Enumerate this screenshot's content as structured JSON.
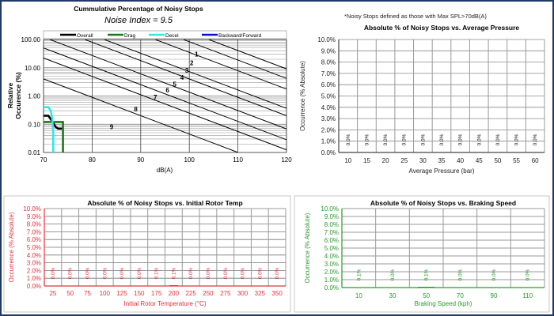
{
  "note": "*Noisy Stops defined as those with Max SPL>70dB(A)",
  "chart_data": [
    {
      "type": "line",
      "title": "Cummulative Percentage of Noisy Stops",
      "subtitle": "Noise Index = 9.5",
      "xlabel": "dB(A)",
      "ylabel": "Relative Occurence (%)",
      "xlim": [
        70,
        120
      ],
      "ylim": [
        0.01,
        100
      ],
      "yscale": "log",
      "xticks": [
        "70",
        "80",
        "90",
        "100",
        "110",
        "120"
      ],
      "yticks": [
        "0.01",
        "0.10",
        "1.00",
        "10.00",
        "100.00"
      ],
      "legend": [
        "Overall",
        "Drag",
        "Decel",
        "Backward/Forward"
      ],
      "legend_position": "top",
      "colors": {
        "Overall": "#000000",
        "Drag": "#1a7a1a",
        "Decel": "#33e6e6",
        "Backward/Forward": "#1010d0"
      },
      "series": [
        {
          "name": "Overall",
          "x": [
            70,
            71,
            71.5,
            72.5,
            73,
            73.8
          ],
          "y": [
            0.2,
            0.2,
            0.15,
            0.08,
            0.07,
            0.07
          ]
        },
        {
          "name": "Drag",
          "x": [
            70,
            74,
            74,
            74
          ],
          "y": [
            0.12,
            0.12,
            0.1,
            0.01
          ]
        },
        {
          "name": "Decel",
          "x": [
            70,
            71,
            71.5,
            71.8,
            72,
            72
          ],
          "y": [
            0.4,
            0.4,
            0.3,
            0.15,
            0.05,
            0.01
          ]
        },
        {
          "name": "Backward/Forward",
          "x": [],
          "y": []
        }
      ],
      "noise_index_lines": {
        "labels": [
          "1",
          "2",
          "3",
          "4",
          "5",
          "6",
          "7",
          "8",
          "9"
        ],
        "db_at_100pct": [
          104,
          98.8,
          93,
          82.5,
          78.5,
          71.3,
          65.4,
          59.9,
          48.5
        ],
        "decades_per_db": 0.065,
        "label_db": [
          101.5,
          100.5,
          99.5,
          98.5,
          97,
          95.5,
          93,
          89,
          84
        ],
        "label_pct": [
          30,
          15,
          8,
          4.5,
          2.6,
          1.6,
          0.9,
          0.35,
          0.08
        ]
      }
    },
    {
      "type": "bar",
      "title": "Absolute % of Noisy Stops vs. Average Pressure",
      "xlabel": "Average Pressure (bar)",
      "ylabel": "Occurrence (% Absolute)",
      "color": "#000000",
      "categories": [
        "10",
        "15",
        "20",
        "25",
        "30",
        "35",
        "40",
        "45",
        "50",
        "55",
        "60"
      ],
      "values": [
        0,
        0,
        0,
        0,
        0,
        0,
        0,
        0,
        0,
        0,
        0
      ],
      "labels": [
        "0.0%",
        "0.0%",
        "0.0%",
        "0.0%",
        "0.0%",
        "0.0%",
        "0.0%",
        "0.0%",
        "0.0%",
        "0.0%",
        "0.0%"
      ],
      "yticks": [
        "0.0%",
        "1.0%",
        "2.0%",
        "3.0%",
        "4.0%",
        "5.0%",
        "6.0%",
        "7.0%",
        "8.0%",
        "9.0%",
        "10.0%"
      ],
      "ylim": [
        0,
        10
      ]
    },
    {
      "type": "bar",
      "title": "Absolute % of Noisy Stops vs. Initial Rotor Temp",
      "xlabel": "Initial Rotor Temperature (°C)",
      "ylabel": "Occurrence (% Absolute)",
      "color": "#e8303a",
      "categories": [
        "25",
        "50",
        "75",
        "100",
        "125",
        "150",
        "175",
        "200",
        "225",
        "250",
        "275",
        "300",
        "325",
        "350"
      ],
      "values": [
        0,
        0,
        0,
        0,
        0,
        0,
        0.05,
        0.1,
        0,
        0,
        0,
        0,
        0,
        0
      ],
      "labels": [
        "0.0%",
        "0.0%",
        "0.0%",
        "0.0%",
        "0.0%",
        "0.0%",
        "0.1%",
        "0.1%",
        "0.0%",
        "0.0%",
        "0.0%",
        "0.0%",
        "0.0%",
        "0.0%"
      ],
      "yticks": [
        "0.0%",
        "1.0%",
        "2.0%",
        "3.0%",
        "4.0%",
        "5.0%",
        "6.0%",
        "7.0%",
        "8.0%",
        "9.0%",
        "10.0%"
      ],
      "ylim": [
        0,
        10
      ]
    },
    {
      "type": "bar",
      "title": "Absolute % of Noisy Stops vs. Braking Speed",
      "xlabel": "Braking Speed (kph)",
      "ylabel": "Occurrence (% Absolute)",
      "color": "#2a9a2a",
      "categories": [
        "10",
        "30",
        "50",
        "70",
        "90",
        "110"
      ],
      "values": [
        0.05,
        0,
        0.1,
        0,
        0,
        0
      ],
      "labels": [
        "0.1%",
        "0.0%",
        "0.1%",
        "0.0%",
        "0.0%",
        "0.0%"
      ],
      "yticks": [
        "0.0%",
        "1.0%",
        "2.0%",
        "3.0%",
        "4.0%",
        "5.0%",
        "6.0%",
        "7.0%",
        "8.0%",
        "9.0%",
        "10.0%"
      ],
      "ylim": [
        0,
        10
      ]
    }
  ]
}
